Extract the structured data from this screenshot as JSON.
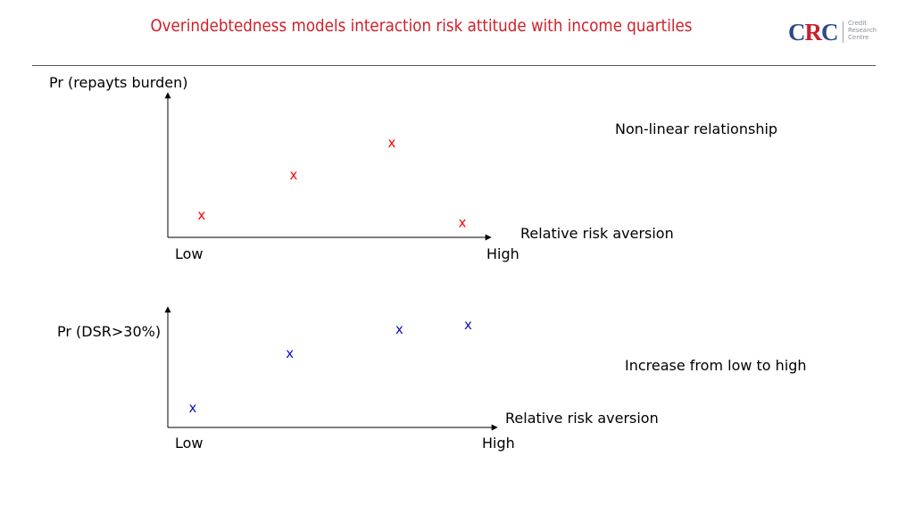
{
  "header": {
    "title": "Overindebtedness models interaction risk attitude with income quartiles",
    "logo": {
      "mark_c1": "C",
      "mark_r": "R",
      "mark_c2": "C",
      "line1": "Credit",
      "line2": "Research",
      "line3": "Centre"
    },
    "colors": {
      "title": "#d0202a",
      "logo_blue": "#2e4a8a",
      "logo_red": "#c8202a"
    }
  },
  "chart_data": [
    {
      "type": "scatter",
      "ylabel": "Pr (repayts burden)",
      "xlabel": "Relative risk aversion",
      "x_tick_labels": [
        "Low",
        "High"
      ],
      "xlim": [
        0,
        1
      ],
      "ylim": [
        0,
        1
      ],
      "marker": "x",
      "color": "#ff0000",
      "annotation": "Non-linear relationship",
      "series": [
        {
          "x": [
            0.11,
            0.41,
            0.73,
            0.96
          ],
          "y": [
            0.15,
            0.43,
            0.65,
            0.1
          ]
        }
      ]
    },
    {
      "type": "scatter",
      "ylabel": "Pr (DSR>30%)",
      "xlabel": "Relative risk aversion",
      "x_tick_labels": [
        "Low",
        "High"
      ],
      "xlim": [
        0,
        1
      ],
      "ylim": [
        0,
        1
      ],
      "marker": "x",
      "color": "#1010c0",
      "annotation": "Increase from low to high",
      "series": [
        {
          "x": [
            0.08,
            0.39,
            0.74,
            0.96
          ],
          "y": [
            0.16,
            0.61,
            0.81,
            0.85
          ]
        }
      ]
    }
  ]
}
